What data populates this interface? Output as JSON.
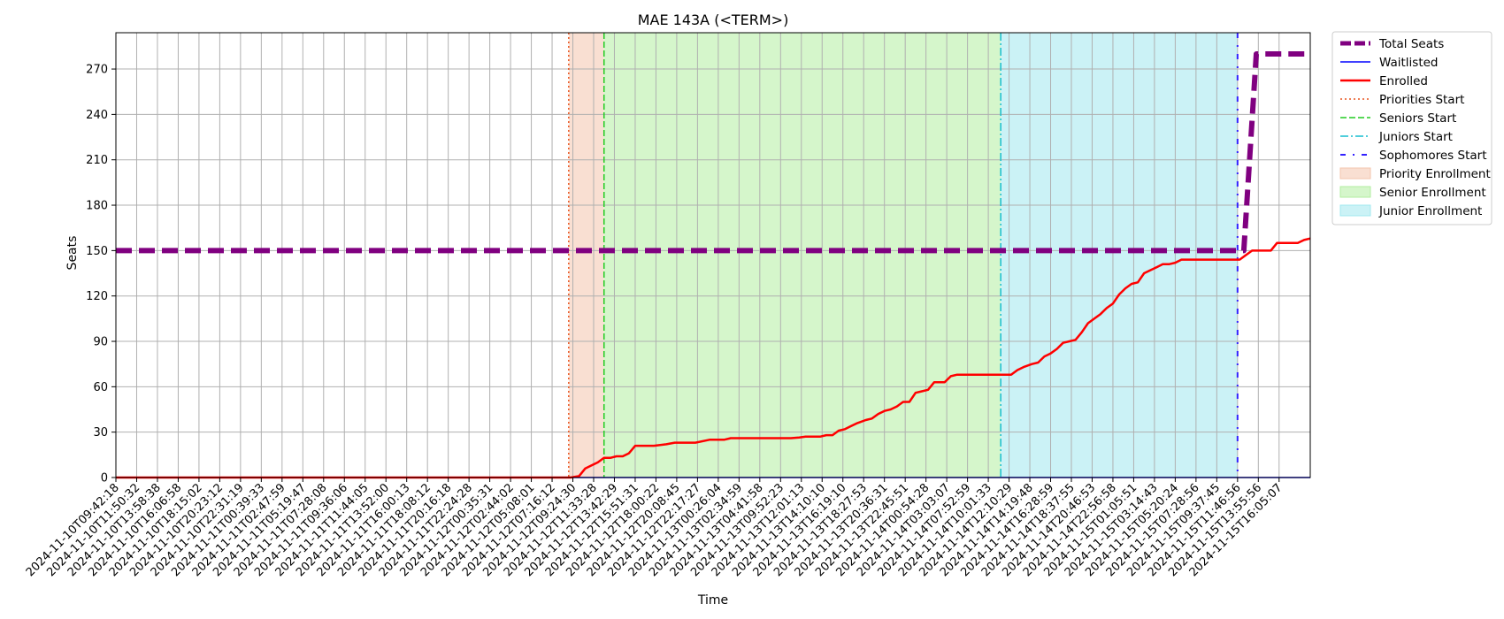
{
  "chart_data": {
    "type": "line",
    "title": "MAE 143A (<TERM>)",
    "xlabel": "Time",
    "ylabel": "Seats",
    "ylim": [
      0,
      294
    ],
    "yticks": [
      0,
      30,
      60,
      90,
      120,
      150,
      180,
      210,
      240,
      270
    ],
    "grid": true,
    "legend_position": "outside-right",
    "x_tick_labels": [
      "2024-11-10T09:42:18",
      "2024-11-10T11:50:32",
      "2024-11-10T13:58:38",
      "2024-11-10T16:06:58",
      "2024-11-10T18:15:02",
      "2024-11-10T20:23:12",
      "2024-11-10T22:31:19",
      "2024-11-11T00:39:33",
      "2024-11-11T02:47:59",
      "2024-11-11T05:19:47",
      "2024-11-11T07:28:08",
      "2024-11-11T09:36:06",
      "2024-11-11T11:44:05",
      "2024-11-11T13:52:00",
      "2024-11-11T16:00:13",
      "2024-11-11T18:08:12",
      "2024-11-11T20:16:18",
      "2024-11-11T22:24:28",
      "2024-11-12T00:35:31",
      "2024-11-12T02:44:02",
      "2024-11-12T05:08:01",
      "2024-11-12T07:16:12",
      "2024-11-12T09:24:30",
      "2024-11-12T11:33:28",
      "2024-11-12T13:42:29",
      "2024-11-12T15:51:31",
      "2024-11-12T18:00:22",
      "2024-11-12T20:08:45",
      "2024-11-12T22:17:27",
      "2024-11-13T00:26:04",
      "2024-11-13T02:34:59",
      "2024-11-13T04:41:58",
      "2024-11-13T09:52:23",
      "2024-11-13T12:01:13",
      "2024-11-13T14:10:10",
      "2024-11-13T16:19:10",
      "2024-11-13T18:27:53",
      "2024-11-13T20:36:31",
      "2024-11-13T22:45:51",
      "2024-11-14T00:54:28",
      "2024-11-14T03:03:07",
      "2024-11-14T07:52:59",
      "2024-11-14T10:01:33",
      "2024-11-14T12:10:29",
      "2024-11-14T14:19:48",
      "2024-11-14T16:28:59",
      "2024-11-14T18:37:55",
      "2024-11-14T20:46:53",
      "2024-11-14T22:56:58",
      "2024-11-15T01:05:51",
      "2024-11-15T03:14:43",
      "2024-11-15T05:20:24",
      "2024-11-15T07:28:56",
      "2024-11-15T09:37:45",
      "2024-11-15T11:46:56",
      "2024-11-15T13:55:56",
      "2024-11-15T16:05:07"
    ],
    "series": [
      {
        "name": "Total Seats",
        "color": "#800080",
        "style": "dashed-thick",
        "points": [
          [
            0,
            150
          ],
          [
            54.3,
            150
          ],
          [
            54.9,
            280
          ],
          [
            57.5,
            280
          ]
        ]
      },
      {
        "name": "Waitlisted",
        "color": "#0000ff",
        "style": "solid-thin",
        "points": [
          [
            0,
            0
          ],
          [
            57.5,
            0
          ]
        ]
      },
      {
        "name": "Enrolled",
        "color": "#ff0000",
        "style": "solid",
        "points": [
          [
            0,
            0
          ],
          [
            21.9,
            0
          ],
          [
            22.3,
            1
          ],
          [
            22.6,
            6
          ],
          [
            22.9,
            8
          ],
          [
            23.2,
            10
          ],
          [
            23.5,
            13
          ],
          [
            23.8,
            13
          ],
          [
            24.1,
            14
          ],
          [
            24.4,
            14
          ],
          [
            24.7,
            16
          ],
          [
            25.0,
            21
          ],
          [
            25.9,
            21
          ],
          [
            26.5,
            22
          ],
          [
            26.9,
            23
          ],
          [
            27.9,
            23
          ],
          [
            28.6,
            25
          ],
          [
            29.3,
            25
          ],
          [
            29.6,
            26
          ],
          [
            30.5,
            26
          ],
          [
            32.0,
            26
          ],
          [
            32.5,
            26
          ],
          [
            32.9,
            26.5
          ],
          [
            33.2,
            27
          ],
          [
            33.9,
            27
          ],
          [
            34.2,
            28
          ],
          [
            34.5,
            28
          ],
          [
            34.8,
            31
          ],
          [
            35.1,
            32
          ],
          [
            35.4,
            34
          ],
          [
            35.7,
            36
          ],
          [
            36.1,
            38
          ],
          [
            36.4,
            39
          ],
          [
            36.7,
            42
          ],
          [
            37.0,
            44
          ],
          [
            37.3,
            45
          ],
          [
            37.6,
            47
          ],
          [
            37.9,
            50
          ],
          [
            38.2,
            50
          ],
          [
            38.5,
            56
          ],
          [
            38.8,
            57
          ],
          [
            39.1,
            58
          ],
          [
            39.4,
            63
          ],
          [
            39.9,
            63
          ],
          [
            40.2,
            67
          ],
          [
            40.5,
            68
          ],
          [
            41.2,
            68
          ],
          [
            42.0,
            68
          ],
          [
            42.7,
            68
          ],
          [
            43.1,
            68
          ],
          [
            43.4,
            71
          ],
          [
            43.7,
            73
          ],
          [
            44.1,
            75
          ],
          [
            44.4,
            76
          ],
          [
            44.7,
            80
          ],
          [
            45.0,
            82
          ],
          [
            45.3,
            85
          ],
          [
            45.6,
            89
          ],
          [
            45.9,
            90
          ],
          [
            46.2,
            91
          ],
          [
            46.5,
            96
          ],
          [
            46.8,
            102
          ],
          [
            47.1,
            105
          ],
          [
            47.4,
            108
          ],
          [
            47.7,
            112
          ],
          [
            48.0,
            115
          ],
          [
            48.3,
            121
          ],
          [
            48.6,
            125
          ],
          [
            48.9,
            128
          ],
          [
            49.2,
            129
          ],
          [
            49.5,
            135
          ],
          [
            49.8,
            137
          ],
          [
            50.1,
            139
          ],
          [
            50.4,
            141
          ],
          [
            50.7,
            141
          ],
          [
            51.0,
            142
          ],
          [
            51.3,
            144
          ],
          [
            52.5,
            144
          ],
          [
            53.5,
            144
          ],
          [
            54.0,
            144
          ],
          [
            54.1,
            144
          ],
          [
            54.4,
            147
          ],
          [
            54.7,
            150
          ],
          [
            55.2,
            150
          ],
          [
            55.6,
            150
          ],
          [
            55.9,
            155
          ],
          [
            56.9,
            155
          ],
          [
            57.2,
            157
          ],
          [
            57.5,
            158
          ],
          [
            57.5,
            158
          ]
        ]
      }
    ],
    "markers": [
      {
        "name": "Priorities Start",
        "x": 21.8,
        "color": "#e8541e",
        "style": "dotted"
      },
      {
        "name": "Seniors Start",
        "x": 23.5,
        "color": "#22cc22",
        "style": "dashed"
      },
      {
        "name": "Juniors Start",
        "x": 42.6,
        "color": "#17becf",
        "style": "dashdot"
      },
      {
        "name": "Sophomores Start",
        "x": 54.0,
        "color": "#3322ff",
        "style": "sparse-dashdot"
      }
    ],
    "regions": [
      {
        "name": "Priority Enrollment",
        "x0": 21.8,
        "x1": 23.5,
        "color": "#f4c5ad"
      },
      {
        "name": "Senior Enrollment",
        "x0": 23.5,
        "x1": 42.6,
        "color": "#b2eea0"
      },
      {
        "name": "Junior Enrollment",
        "x0": 42.6,
        "x1": 54.0,
        "color": "#a0e8ef"
      }
    ],
    "x_range": [
      0,
      57.5
    ]
  }
}
